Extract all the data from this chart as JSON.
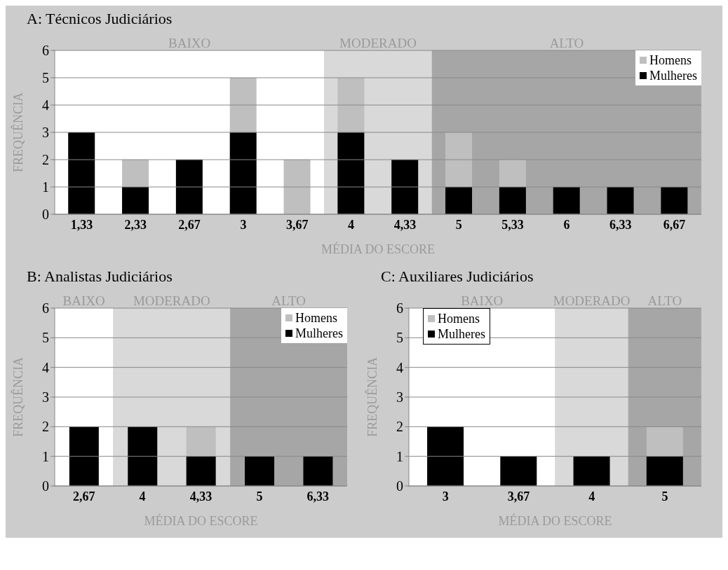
{
  "chart_data": [
    {
      "type": "bar",
      "title": "A: Técnicos Judiciários",
      "xlabel": "MÉDIA DO ESCORE",
      "ylabel": "FREQUÊNCIA",
      "categories": [
        "1,33",
        "2,33",
        "2,67",
        "3",
        "3,67",
        "4",
        "4,33",
        "5",
        "5,33",
        "6",
        "6,33",
        "6,67"
      ],
      "stacked": true,
      "series": [
        {
          "name": "Mulheres",
          "color": "#000000",
          "values": [
            3,
            1,
            2,
            3,
            0,
            3,
            2,
            1,
            1,
            1,
            1,
            1
          ]
        },
        {
          "name": "Homens",
          "color": "#bfbfbf",
          "values": [
            0,
            1,
            0,
            2,
            2,
            2,
            0,
            2,
            1,
            0,
            0,
            0
          ]
        }
      ],
      "ylim": [
        0,
        6
      ],
      "yticks": [
        0,
        1,
        2,
        3,
        4,
        5,
        6
      ],
      "grid": "y",
      "legend": "top right",
      "bands": [
        {
          "axis": "x",
          "from": "1,33",
          "to": "3,67",
          "label": "BAIXO",
          "color": "#ffffff"
        },
        {
          "axis": "x",
          "from": "4",
          "to": "4,33",
          "label": "MODERADO",
          "color": "#d9d9d9"
        },
        {
          "axis": "x",
          "from": "5",
          "to": "6,67",
          "label": "ALTO",
          "color": "#a6a6a6"
        }
      ]
    },
    {
      "type": "bar",
      "title": "B: Analistas Judiciários",
      "xlabel": "MÉDIA DO ESCORE",
      "ylabel": "FREQUÊNCIA",
      "categories": [
        "2,67",
        "4",
        "4,33",
        "5",
        "6,33"
      ],
      "stacked": true,
      "series": [
        {
          "name": "Mulheres",
          "color": "#000000",
          "values": [
            2,
            2,
            1,
            1,
            1
          ]
        },
        {
          "name": "Homens",
          "color": "#bfbfbf",
          "values": [
            0,
            0,
            1,
            0,
            0
          ]
        }
      ],
      "ylim": [
        0,
        6
      ],
      "yticks": [
        0,
        1,
        2,
        3,
        4,
        5,
        6
      ],
      "grid": "y",
      "legend": "top right",
      "bands": [
        {
          "axis": "x",
          "from": "2,67",
          "to": "2,67",
          "label": "BAIXO",
          "color": "#ffffff"
        },
        {
          "axis": "x",
          "from": "4",
          "to": "4,33",
          "label": "MODERADO",
          "color": "#d9d9d9"
        },
        {
          "axis": "x",
          "from": "5",
          "to": "6,33",
          "label": "ALTO",
          "color": "#a6a6a6"
        }
      ]
    },
    {
      "type": "bar",
      "title": "C: Auxiliares Judiciários",
      "xlabel": "MÉDIA DO ESCORE",
      "ylabel": "FREQUÊNCIA",
      "categories": [
        "3",
        "3,67",
        "4",
        "5"
      ],
      "stacked": true,
      "series": [
        {
          "name": "Mulheres",
          "color": "#000000",
          "values": [
            2,
            1,
            1,
            1
          ]
        },
        {
          "name": "Homens",
          "color": "#bfbfbf",
          "values": [
            0,
            0,
            0,
            1
          ]
        }
      ],
      "ylim": [
        0,
        6
      ],
      "yticks": [
        0,
        1,
        2,
        3,
        4,
        5,
        6
      ],
      "grid": "y",
      "legend": "top left",
      "bands": [
        {
          "axis": "x",
          "from": "3",
          "to": "3,67",
          "label": "BAIXO",
          "color": "#ffffff"
        },
        {
          "axis": "x",
          "from": "4",
          "to": "4",
          "label": "MODERADO",
          "color": "#d9d9d9"
        },
        {
          "axis": "x",
          "from": "5",
          "to": "5",
          "label": "ALTO",
          "color": "#a6a6a6"
        }
      ]
    }
  ]
}
